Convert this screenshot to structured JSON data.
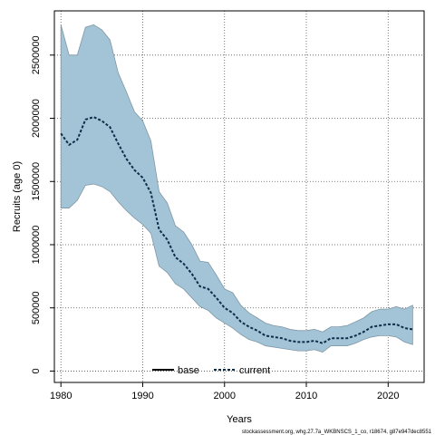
{
  "chart_data": {
    "type": "area",
    "title": "",
    "xlabel": "Years",
    "ylabel": "Recruits (age 0)",
    "xlim": [
      1979.2,
      2024.4
    ],
    "ylim": [
      -90000,
      2850000
    ],
    "x_ticks": [
      1980,
      1990,
      2000,
      2010,
      2020
    ],
    "y_ticks": [
      0,
      500000,
      1000000,
      1500000,
      2000000,
      2500000
    ],
    "grid": true,
    "legend_position": "bottom-center",
    "colors": {
      "band_fill": "#a3c4d6",
      "band_stroke": "#7f97a6",
      "current_line": "#0d2d4a",
      "base_line": "#000000"
    },
    "series": [
      {
        "name": "base",
        "style": "solid",
        "x": [],
        "values": []
      },
      {
        "name": "current",
        "style": "dashed",
        "x": [
          1980,
          1981,
          1982,
          1983,
          1984,
          1985,
          1986,
          1987,
          1988,
          1989,
          1990,
          1991,
          1992,
          1993,
          1994,
          1995,
          1996,
          1997,
          1998,
          1999,
          2000,
          2001,
          2002,
          2003,
          2004,
          2005,
          2006,
          2007,
          2008,
          2009,
          2010,
          2011,
          2012,
          2013,
          2014,
          2015,
          2016,
          2017,
          2018,
          2019,
          2020,
          2021,
          2022,
          2023
        ],
        "values": [
          1880000,
          1790000,
          1830000,
          1990000,
          2010000,
          1980000,
          1930000,
          1800000,
          1680000,
          1590000,
          1530000,
          1410000,
          1120000,
          1040000,
          900000,
          850000,
          770000,
          670000,
          650000,
          580000,
          500000,
          460000,
          390000,
          350000,
          320000,
          280000,
          270000,
          260000,
          240000,
          230000,
          230000,
          240000,
          220000,
          260000,
          260000,
          260000,
          280000,
          310000,
          350000,
          360000,
          370000,
          370000,
          340000,
          330000
        ],
        "lower": [
          1290000,
          1290000,
          1350000,
          1470000,
          1480000,
          1460000,
          1420000,
          1340000,
          1270000,
          1210000,
          1160000,
          1090000,
          830000,
          780000,
          690000,
          650000,
          580000,
          510000,
          480000,
          420000,
          380000,
          340000,
          290000,
          250000,
          230000,
          200000,
          190000,
          180000,
          170000,
          160000,
          160000,
          170000,
          150000,
          200000,
          200000,
          200000,
          220000,
          250000,
          270000,
          280000,
          280000,
          270000,
          230000,
          210000
        ],
        "upper": [
          2740000,
          2500000,
          2500000,
          2720000,
          2740000,
          2700000,
          2620000,
          2360000,
          2210000,
          2050000,
          1980000,
          1820000,
          1420000,
          1330000,
          1150000,
          1100000,
          1000000,
          870000,
          860000,
          760000,
          650000,
          620000,
          520000,
          460000,
          420000,
          380000,
          360000,
          350000,
          330000,
          320000,
          320000,
          330000,
          310000,
          350000,
          350000,
          360000,
          390000,
          420000,
          470000,
          490000,
          490000,
          510000,
          490000,
          520000
        ]
      }
    ],
    "footer": "stockassessment.org, whg.27.7a_WKBNSCS_1_co, r18674, g87e947dec8551"
  }
}
